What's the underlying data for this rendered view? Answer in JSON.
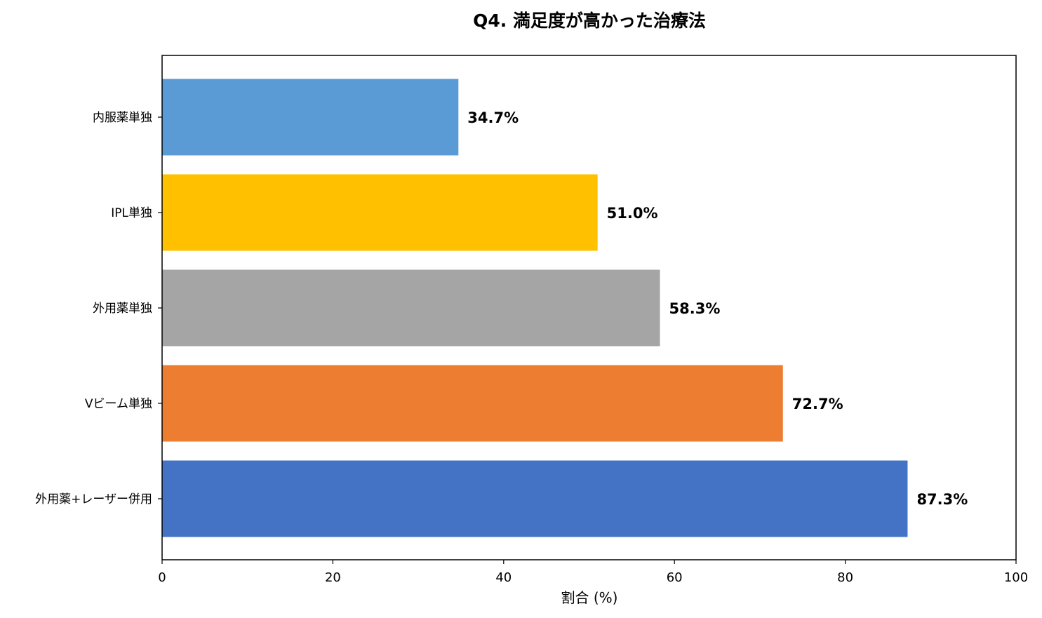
{
  "chart_data": {
    "type": "bar",
    "orientation": "horizontal",
    "title": "Q4. 満足度が高かった治療法",
    "xlabel": "割合 (%)",
    "ylabel": "",
    "xlim": [
      0,
      100
    ],
    "xticks": [
      0,
      20,
      40,
      60,
      80,
      100
    ],
    "grid": false,
    "categories": [
      "外用薬+レーザー併用",
      "Vビーム単独",
      "外用薬単独",
      "IPL単独",
      "内服薬単独"
    ],
    "values": [
      87.3,
      72.7,
      58.3,
      51.0,
      34.7
    ],
    "value_labels": [
      "87.3%",
      "72.7%",
      "58.3%",
      "51.0%",
      "34.7%"
    ],
    "colors": [
      "#4472c4",
      "#ed7d31",
      "#a5a5a5",
      "#ffc000",
      "#5b9bd5"
    ]
  }
}
